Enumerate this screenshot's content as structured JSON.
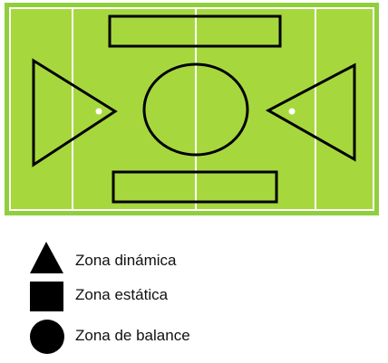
{
  "colors": {
    "field_border": "#8fcf3c",
    "field_fill": "#a6d83e",
    "lines": "#ffffff",
    "shapes": "#000000"
  },
  "legend": [
    {
      "shape": "triangle",
      "label": "Zona dinámica"
    },
    {
      "shape": "square",
      "label": "Zona estática"
    },
    {
      "shape": "circle",
      "label": "Zona de balance"
    }
  ]
}
